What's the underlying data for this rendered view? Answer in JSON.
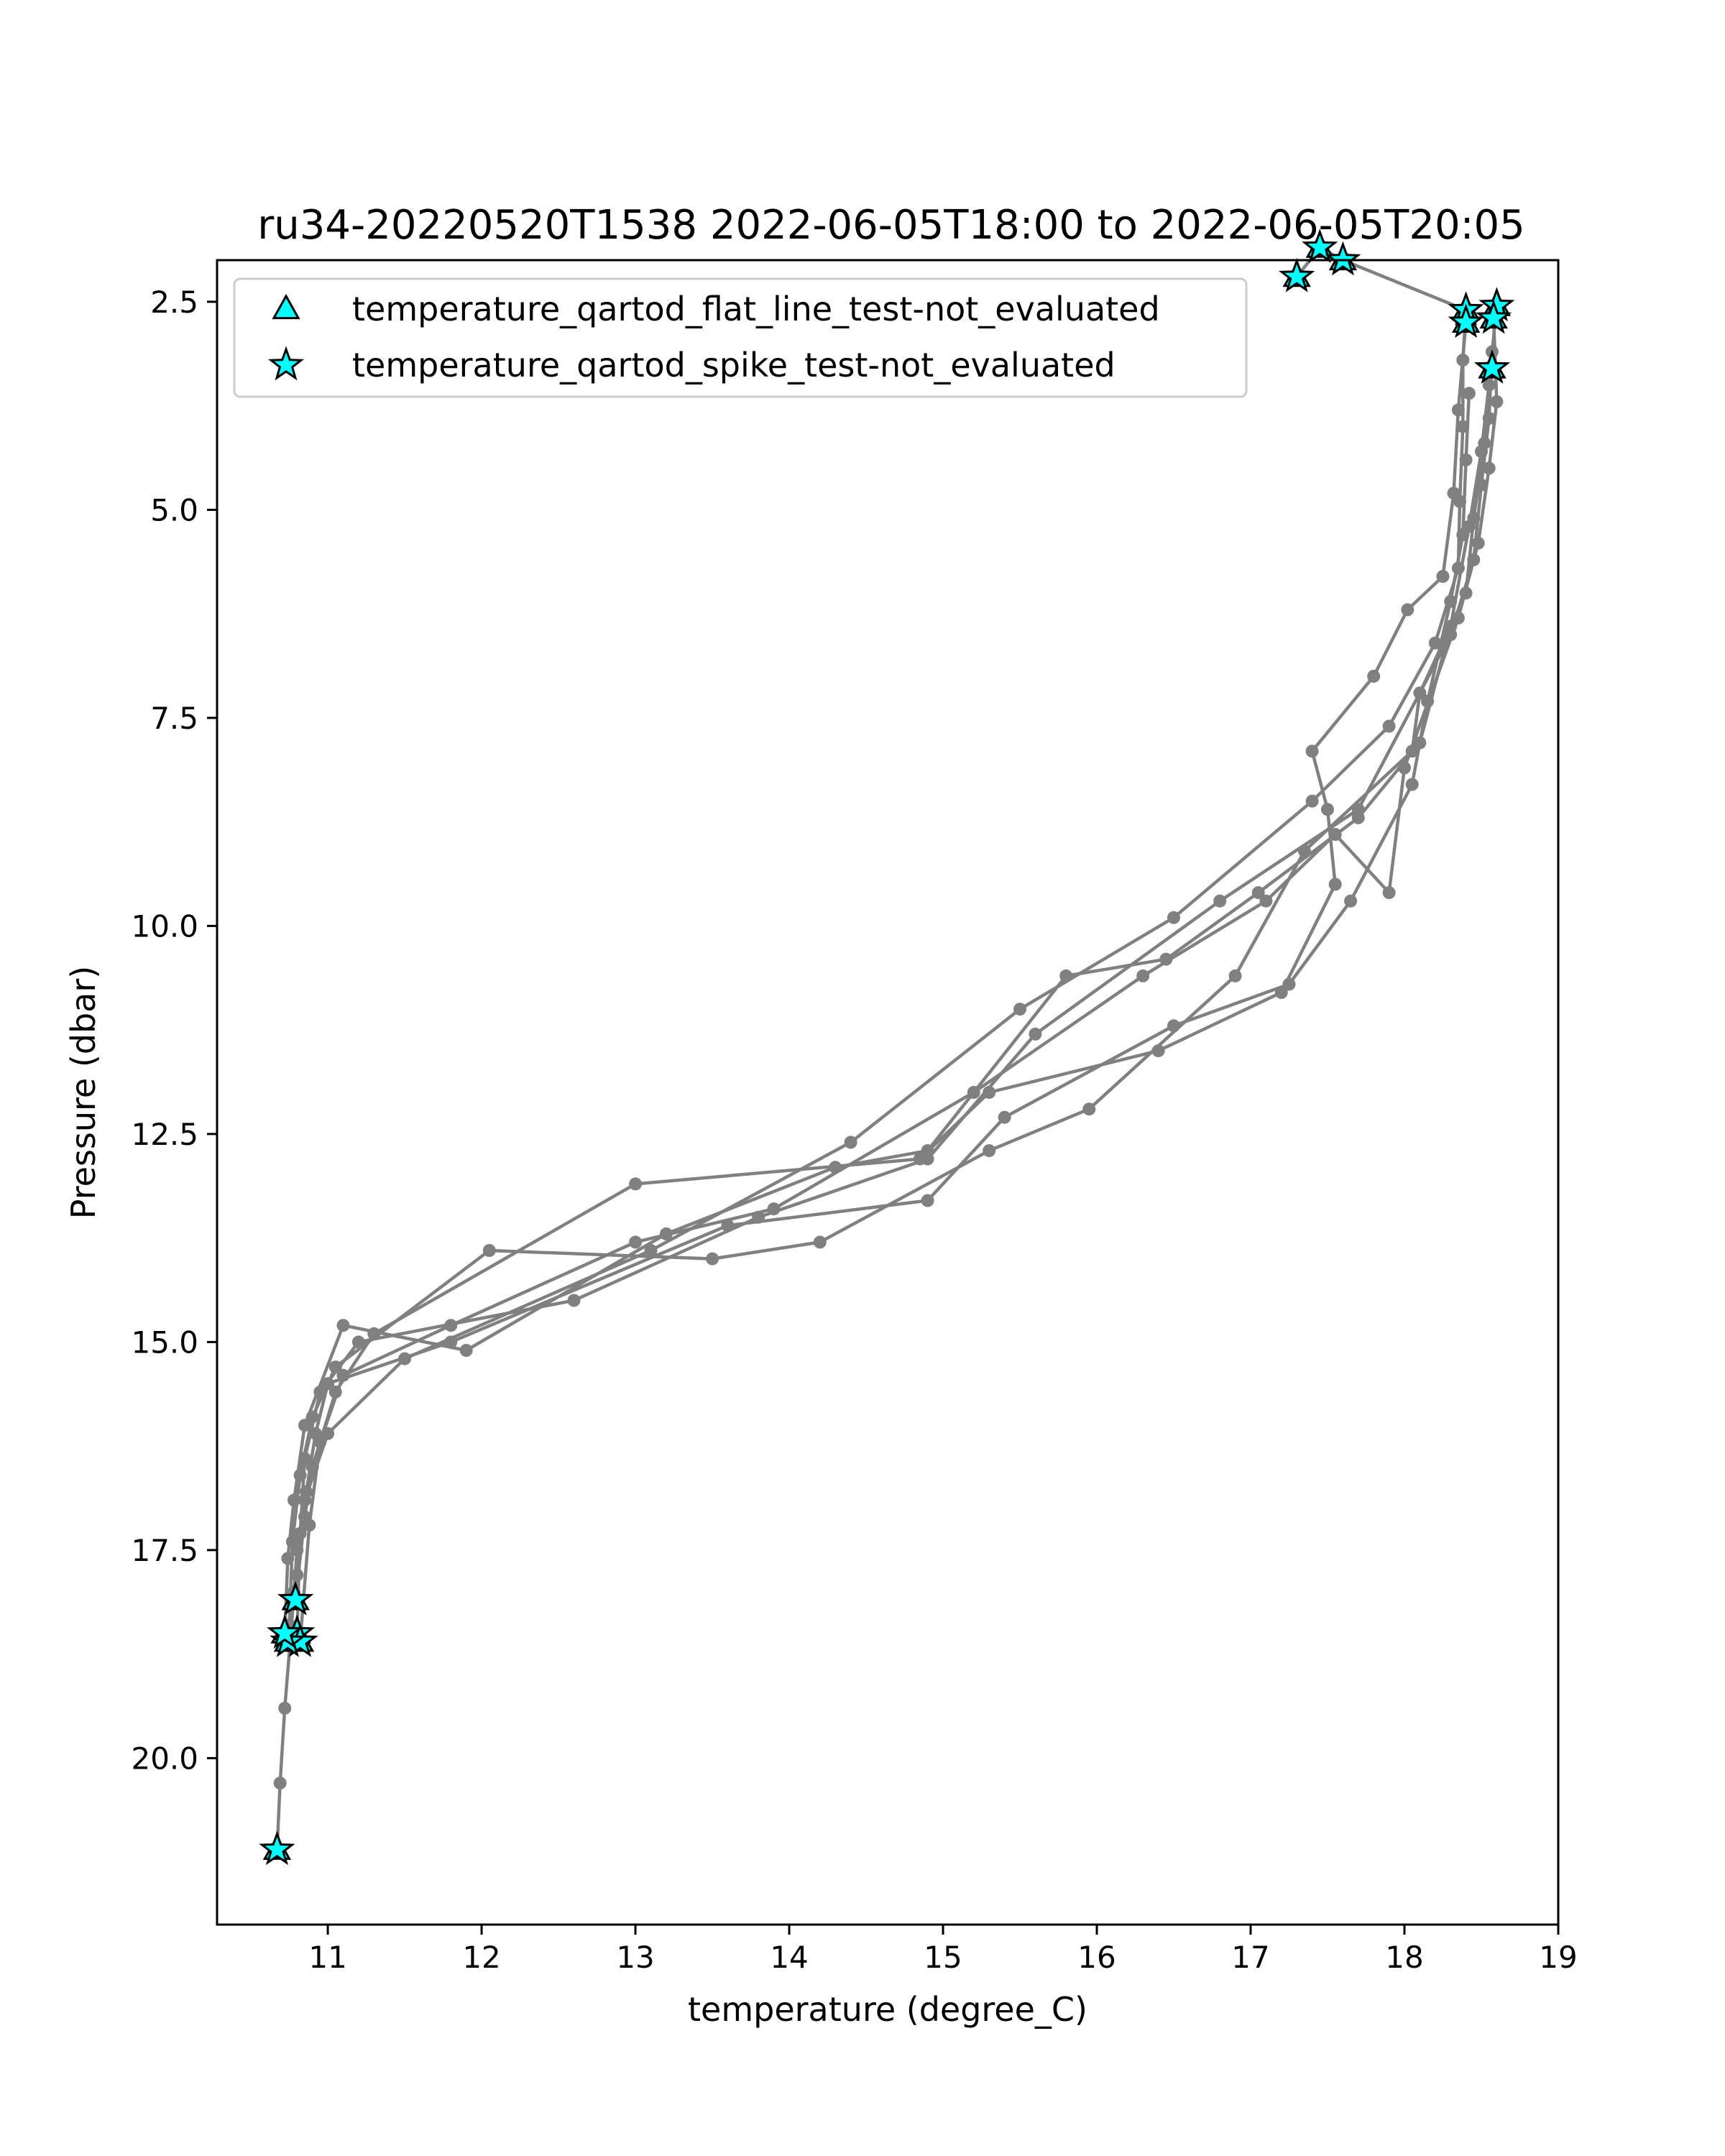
{
  "chart_data": {
    "type": "line",
    "title": "ru34-20220520T1538 2022-06-05T18:00 to 2022-06-05T20:05",
    "xlabel": "temperature (degree_C)",
    "ylabel": "Pressure (dbar)",
    "xlim": [
      10.28,
      19.0
    ],
    "ylim": [
      2.0,
      22.0
    ],
    "y_inverted": true,
    "xticks": [
      11,
      12,
      13,
      14,
      15,
      16,
      17,
      18,
      19
    ],
    "yticks": [
      2.5,
      5.0,
      7.5,
      10.0,
      12.5,
      15.0,
      17.5,
      20.0
    ],
    "xtick_labels": [
      "11",
      "12",
      "13",
      "14",
      "15",
      "16",
      "17",
      "18",
      "19"
    ],
    "ytick_labels": [
      "2.5",
      "5.0",
      "7.5",
      "10.0",
      "12.5",
      "15.0",
      "17.5",
      "20.0"
    ],
    "grid": false,
    "legend_position": "top-left",
    "line_color": "#808080",
    "marker_color": "#00ffff",
    "legend": [
      {
        "label": "temperature_qartod_flat_line_test-not_evaluated",
        "marker": "triangle"
      },
      {
        "label": "temperature_qartod_spike_test-not_evaluated",
        "marker": "star"
      }
    ],
    "profiles": [
      {
        "points": [
          [
            17.3,
            2.2
          ],
          [
            17.45,
            1.85
          ],
          [
            17.6,
            2.0
          ],
          [
            18.4,
            2.6
          ],
          [
            18.38,
            3.2
          ],
          [
            18.38,
            4.0
          ],
          [
            18.36,
            4.9
          ],
          [
            18.35,
            5.7
          ],
          [
            18.2,
            6.6
          ],
          [
            17.9,
            7.6
          ],
          [
            17.4,
            8.5
          ],
          [
            16.5,
            9.9
          ],
          [
            15.5,
            11.0
          ],
          [
            14.4,
            12.6
          ],
          [
            13.1,
            13.9
          ],
          [
            11.5,
            15.2
          ],
          [
            11.0,
            16.1
          ],
          [
            10.85,
            16.9
          ],
          [
            10.8,
            17.5
          ],
          [
            10.78,
            18.0
          ],
          [
            10.76,
            18.5
          ],
          [
            10.72,
            19.4
          ],
          [
            10.69,
            20.3
          ],
          [
            10.67,
            21.1
          ]
        ]
      },
      {
        "points": [
          [
            18.6,
            2.55
          ],
          [
            18.57,
            3.1
          ],
          [
            18.55,
            3.9
          ],
          [
            18.5,
            4.7
          ],
          [
            18.45,
            5.6
          ],
          [
            18.3,
            6.5
          ],
          [
            17.7,
            8.6
          ],
          [
            16.8,
            9.7
          ],
          [
            15.6,
            11.3
          ],
          [
            14.9,
            12.8
          ],
          [
            13.8,
            13.5
          ],
          [
            12.6,
            14.5
          ],
          [
            11.2,
            15.0
          ],
          [
            10.95,
            15.6
          ],
          [
            10.85,
            16.4
          ],
          [
            10.82,
            17.3
          ],
          [
            10.8,
            18.5
          ]
        ]
      },
      {
        "points": [
          [
            18.58,
            2.7
          ],
          [
            18.6,
            3.7
          ],
          [
            18.55,
            4.5
          ],
          [
            18.48,
            5.4
          ],
          [
            18.35,
            6.3
          ],
          [
            18.0,
            8.1
          ],
          [
            17.9,
            9.6
          ],
          [
            17.55,
            8.9
          ],
          [
            17.1,
            9.7
          ],
          [
            16.3,
            10.6
          ],
          [
            15.2,
            12.0
          ],
          [
            13.9,
            13.4
          ],
          [
            13.0,
            13.8
          ],
          [
            11.8,
            14.8
          ],
          [
            11.1,
            15.4
          ],
          [
            10.95,
            16.2
          ],
          [
            10.88,
            17.2
          ],
          [
            10.82,
            18.6
          ]
        ]
      },
      {
        "points": [
          [
            18.4,
            2.75
          ],
          [
            18.35,
            3.8
          ],
          [
            18.32,
            4.8
          ],
          [
            18.25,
            5.8
          ],
          [
            18.02,
            6.2
          ],
          [
            17.8,
            7.0
          ],
          [
            17.4,
            7.9
          ],
          [
            17.5,
            8.6
          ],
          [
            17.55,
            9.5
          ],
          [
            17.2,
            10.8
          ],
          [
            16.4,
            11.5
          ],
          [
            15.3,
            12.0
          ],
          [
            14.85,
            12.8
          ],
          [
            13.0,
            13.1
          ],
          [
            11.3,
            14.9
          ],
          [
            11.05,
            15.6
          ],
          [
            10.9,
            16.5
          ],
          [
            10.85,
            17.1
          ],
          [
            10.79,
            18.1
          ]
        ]
      },
      {
        "points": [
          [
            18.57,
            3.3
          ],
          [
            18.52,
            4.2
          ],
          [
            18.45,
            5.1
          ],
          [
            18.4,
            6.0
          ],
          [
            18.1,
            7.2
          ],
          [
            18.05,
            7.9
          ],
          [
            17.35,
            9.1
          ],
          [
            16.9,
            10.6
          ],
          [
            15.95,
            12.2
          ],
          [
            15.3,
            12.7
          ],
          [
            14.2,
            13.8
          ],
          [
            13.5,
            14.0
          ],
          [
            12.05,
            13.9
          ],
          [
            11.05,
            15.3
          ],
          [
            10.9,
            15.9
          ],
          [
            10.82,
            16.6
          ],
          [
            10.77,
            17.4
          ],
          [
            10.75,
            18.4
          ]
        ]
      },
      {
        "points": [
          [
            18.42,
            3.6
          ],
          [
            18.4,
            4.4
          ],
          [
            18.38,
            5.3
          ],
          [
            18.3,
            6.1
          ],
          [
            18.15,
            7.3
          ],
          [
            18.05,
            8.3
          ],
          [
            17.65,
            9.7
          ],
          [
            17.25,
            10.7
          ],
          [
            16.5,
            11.2
          ],
          [
            15.4,
            12.3
          ],
          [
            14.9,
            13.3
          ],
          [
            13.6,
            13.6
          ],
          [
            11.8,
            15.0
          ],
          [
            11.0,
            15.5
          ],
          [
            10.92,
            16.1
          ],
          [
            10.86,
            16.8
          ],
          [
            10.8,
            17.8
          ],
          [
            10.74,
            18.6
          ]
        ]
      },
      {
        "points": [
          [
            18.55,
            3.5
          ],
          [
            18.5,
            4.3
          ],
          [
            18.42,
            5.2
          ],
          [
            18.3,
            6.4
          ],
          [
            18.1,
            7.8
          ],
          [
            17.7,
            8.7
          ],
          [
            17.05,
            9.6
          ],
          [
            16.45,
            10.4
          ],
          [
            15.8,
            10.6
          ],
          [
            14.9,
            12.7
          ],
          [
            14.3,
            12.9
          ],
          [
            13.2,
            13.7
          ],
          [
            11.9,
            15.1
          ],
          [
            11.1,
            14.8
          ],
          [
            10.85,
            16.0
          ],
          [
            10.78,
            16.9
          ],
          [
            10.74,
            17.6
          ],
          [
            10.72,
            18.5
          ]
        ]
      }
    ],
    "flat_line_flags": [
      [
        17.3,
        2.2
      ],
      [
        17.45,
        1.85
      ],
      [
        17.6,
        2.0
      ],
      [
        18.4,
        2.6
      ],
      [
        18.6,
        2.55
      ],
      [
        18.58,
        2.7
      ],
      [
        18.4,
        2.75
      ],
      [
        18.57,
        3.3
      ],
      [
        10.79,
        18.1
      ],
      [
        10.8,
        18.5
      ],
      [
        10.82,
        18.6
      ],
      [
        10.74,
        18.6
      ],
      [
        10.72,
        18.5
      ],
      [
        10.67,
        21.1
      ]
    ],
    "spike_flags": [
      [
        17.3,
        2.2
      ],
      [
        17.45,
        1.85
      ],
      [
        17.6,
        2.0
      ],
      [
        18.4,
        2.6
      ],
      [
        18.6,
        2.55
      ],
      [
        18.58,
        2.7
      ],
      [
        18.4,
        2.75
      ],
      [
        18.57,
        3.3
      ],
      [
        10.79,
        18.1
      ],
      [
        10.8,
        18.5
      ],
      [
        10.82,
        18.6
      ],
      [
        10.74,
        18.6
      ],
      [
        10.72,
        18.5
      ],
      [
        10.67,
        21.1
      ]
    ]
  }
}
